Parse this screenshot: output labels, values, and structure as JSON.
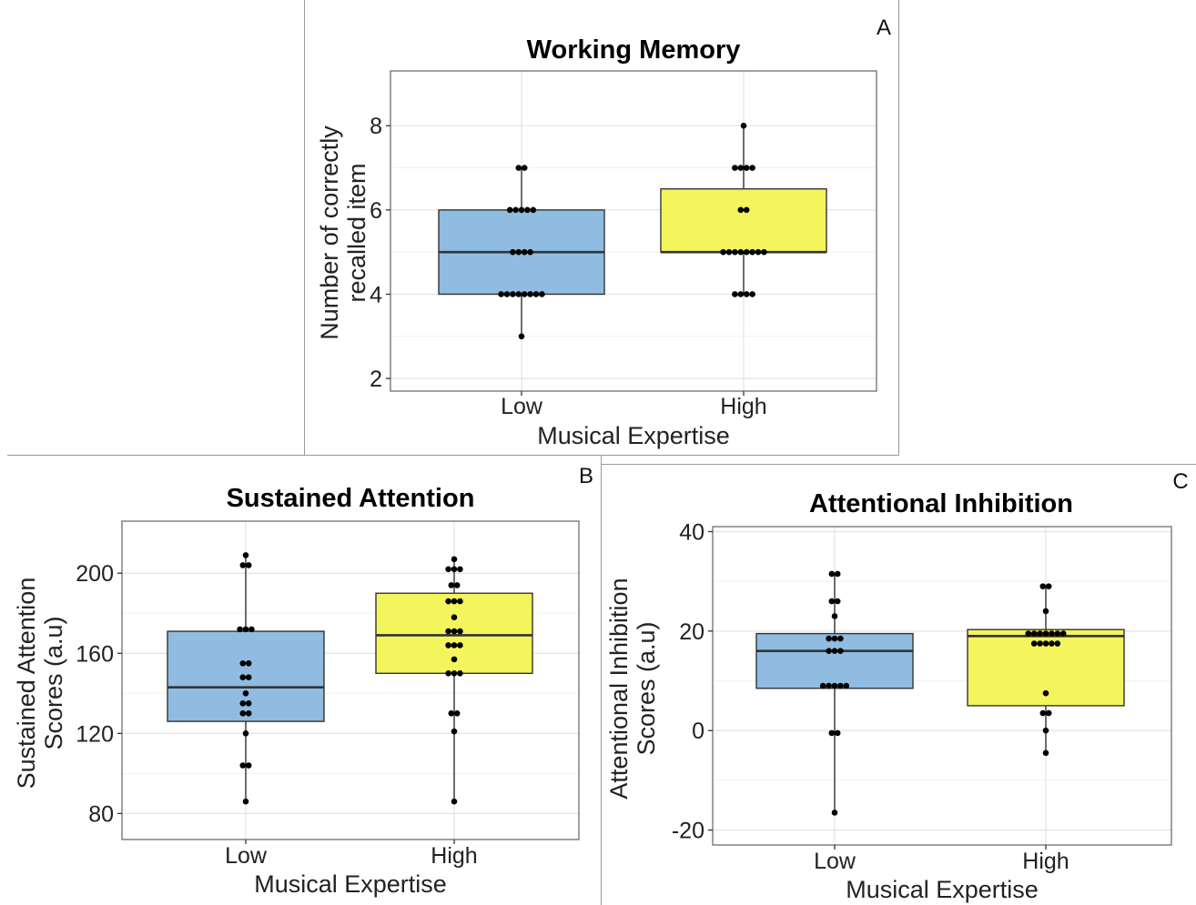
{
  "chart_data": [
    {
      "panel": "A",
      "type": "box",
      "title": "Working Memory",
      "xlabel": "Musical Expertise",
      "ylabel": [
        "Number of correctly",
        "recalled item"
      ],
      "ylim": [
        1.7,
        9.3
      ],
      "yticks": [
        2,
        4,
        6,
        8
      ],
      "ytick_labels": [
        "2",
        "4",
        "6",
        "8"
      ],
      "categories": [
        "Low",
        "High"
      ],
      "boxes": [
        {
          "category": "Low",
          "q1": 4,
          "median": 5,
          "q3": 6,
          "whisker_low": 3,
          "whisker_high": 7,
          "color": "#8fbce0"
        },
        {
          "category": "High",
          "q1": 5,
          "median": 5,
          "q3": 6.5,
          "whisker_low": 4,
          "whisker_high": 8,
          "color": "#f4f45c"
        }
      ],
      "points": [
        {
          "category": "Low",
          "value": 7,
          "count": 2
        },
        {
          "category": "Low",
          "value": 6,
          "count": 5
        },
        {
          "category": "Low",
          "value": 5,
          "count": 4
        },
        {
          "category": "Low",
          "value": 4,
          "count": 8
        },
        {
          "category": "Low",
          "value": 3,
          "count": 1
        },
        {
          "category": "High",
          "value": 8,
          "count": 1
        },
        {
          "category": "High",
          "value": 7,
          "count": 4
        },
        {
          "category": "High",
          "value": 6,
          "count": 2
        },
        {
          "category": "High",
          "value": 5,
          "count": 8
        },
        {
          "category": "High",
          "value": 4,
          "count": 4
        }
      ]
    },
    {
      "panel": "B",
      "type": "box",
      "title": "Sustained Attention",
      "xlabel": "Musical Expertise",
      "ylabel": [
        "Sustained Attention",
        "Scores (a.u)"
      ],
      "ylim": [
        67,
        226
      ],
      "yticks": [
        80,
        120,
        160,
        200
      ],
      "ytick_labels": [
        "80",
        "120",
        "160",
        "200"
      ],
      "categories": [
        "Low",
        "High"
      ],
      "boxes": [
        {
          "category": "Low",
          "q1": 126,
          "median": 143,
          "q3": 171,
          "whisker_low": 86,
          "whisker_high": 209,
          "color": "#8fbce0"
        },
        {
          "category": "High",
          "q1": 150,
          "median": 169,
          "q3": 190,
          "whisker_low": 86,
          "whisker_high": 207,
          "color": "#f4f45c"
        }
      ],
      "points": [
        {
          "category": "Low",
          "value": 209,
          "count": 1
        },
        {
          "category": "Low",
          "value": 204,
          "count": 2
        },
        {
          "category": "Low",
          "value": 172,
          "count": 3
        },
        {
          "category": "Low",
          "value": 155,
          "count": 2
        },
        {
          "category": "Low",
          "value": 148,
          "count": 2
        },
        {
          "category": "Low",
          "value": 140,
          "count": 1
        },
        {
          "category": "Low",
          "value": 135,
          "count": 2
        },
        {
          "category": "Low",
          "value": 130,
          "count": 2
        },
        {
          "category": "Low",
          "value": 120,
          "count": 1
        },
        {
          "category": "Low",
          "value": 104,
          "count": 2
        },
        {
          "category": "Low",
          "value": 86,
          "count": 1
        },
        {
          "category": "High",
          "value": 207,
          "count": 1
        },
        {
          "category": "High",
          "value": 202,
          "count": 3
        },
        {
          "category": "High",
          "value": 194,
          "count": 2
        },
        {
          "category": "High",
          "value": 186,
          "count": 3
        },
        {
          "category": "High",
          "value": 178,
          "count": 1
        },
        {
          "category": "High",
          "value": 171,
          "count": 3
        },
        {
          "category": "High",
          "value": 164,
          "count": 3
        },
        {
          "category": "High",
          "value": 157,
          "count": 1
        },
        {
          "category": "High",
          "value": 150,
          "count": 3
        },
        {
          "category": "High",
          "value": 130,
          "count": 2
        },
        {
          "category": "High",
          "value": 121,
          "count": 1
        },
        {
          "category": "High",
          "value": 86,
          "count": 1
        }
      ]
    },
    {
      "panel": "C",
      "type": "box",
      "title": "Attentional Inhibition",
      "xlabel": "Musical Expertise",
      "ylabel": [
        "Attentional Inhibition",
        "Scores (a.u)"
      ],
      "ylim": [
        -23,
        41
      ],
      "yticks": [
        -20,
        0,
        20,
        40
      ],
      "ytick_labels": [
        "-20",
        "0",
        "20",
        "40"
      ],
      "categories": [
        "Low",
        "High"
      ],
      "boxes": [
        {
          "category": "Low",
          "q1": 8.5,
          "median": 16,
          "q3": 19.5,
          "whisker_low": -16.5,
          "whisker_high": 31.5,
          "color": "#8fbce0"
        },
        {
          "category": "High",
          "q1": 5,
          "median": 19,
          "q3": 20.3,
          "whisker_low": -4.5,
          "whisker_high": 29,
          "color": "#f4f45c"
        }
      ],
      "points": [
        {
          "category": "Low",
          "value": 31.5,
          "count": 2
        },
        {
          "category": "Low",
          "value": 26,
          "count": 2
        },
        {
          "category": "Low",
          "value": 23,
          "count": 1
        },
        {
          "category": "Low",
          "value": 18.5,
          "count": 3
        },
        {
          "category": "Low",
          "value": 16,
          "count": 3
        },
        {
          "category": "Low",
          "value": 9,
          "count": 5
        },
        {
          "category": "Low",
          "value": -0.5,
          "count": 2
        },
        {
          "category": "Low",
          "value": -16.5,
          "count": 1
        },
        {
          "category": "High",
          "value": 29,
          "count": 2
        },
        {
          "category": "High",
          "value": 24,
          "count": 1
        },
        {
          "category": "High",
          "value": 19.5,
          "count": 7
        },
        {
          "category": "High",
          "value": 17.5,
          "count": 5
        },
        {
          "category": "High",
          "value": 7.5,
          "count": 1
        },
        {
          "category": "High",
          "value": 3.5,
          "count": 2
        },
        {
          "category": "High",
          "value": 0,
          "count": 1
        },
        {
          "category": "High",
          "value": -4.5,
          "count": 1
        }
      ]
    }
  ]
}
